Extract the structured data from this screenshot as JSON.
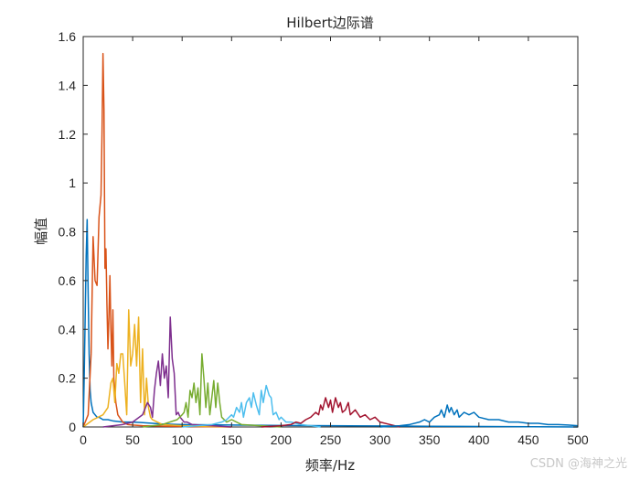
{
  "chart_data": {
    "type": "line",
    "title": "Hilbert边际谱",
    "xlabel": "频率/Hz",
    "ylabel": "幅值",
    "xlim": [
      0,
      500
    ],
    "ylim": [
      0,
      1.6
    ],
    "xticks": [
      "0",
      "50",
      "100",
      "150",
      "200",
      "250",
      "300",
      "350",
      "400",
      "450",
      "500"
    ],
    "yticks": [
      "0",
      "0.2",
      "0.4",
      "0.6",
      "0.8",
      "1",
      "1.2",
      "1.4",
      "1.6"
    ],
    "grid": false,
    "legend": "none",
    "series": [
      {
        "color": "#0072BD",
        "x": [
          0,
          1,
          2,
          3,
          4,
          5,
          6,
          7,
          8,
          9,
          10,
          12,
          14,
          16,
          18,
          20,
          25,
          30,
          40,
          50,
          60,
          70,
          80,
          100,
          150,
          200,
          250,
          300,
          350,
          500
        ],
        "y": [
          0.0,
          0.2,
          0.45,
          0.7,
          0.85,
          0.55,
          0.3,
          0.15,
          0.1,
          0.08,
          0.06,
          0.05,
          0.04,
          0.04,
          0.035,
          0.03,
          0.03,
          0.025,
          0.02,
          0.02,
          0.018,
          0.015,
          0.012,
          0.01,
          0.008,
          0.006,
          0.005,
          0.004,
          0.003,
          0.0
        ]
      },
      {
        "color": "#D95319",
        "x": [
          0,
          5,
          8,
          10,
          12,
          14,
          16,
          18,
          19,
          20,
          21,
          22,
          23,
          24,
          25,
          26,
          27,
          28,
          29,
          30,
          31,
          32,
          33,
          35,
          40,
          45,
          50,
          60,
          100,
          150
        ],
        "y": [
          0.0,
          0.05,
          0.3,
          0.78,
          0.6,
          0.58,
          0.86,
          0.95,
          1.2,
          1.53,
          1.3,
          0.65,
          0.73,
          0.5,
          0.32,
          0.45,
          0.62,
          0.4,
          0.25,
          0.48,
          0.2,
          0.15,
          0.1,
          0.05,
          0.02,
          0.01,
          0.008,
          0.005,
          0.002,
          0.0
        ]
      },
      {
        "color": "#EDB120",
        "x": [
          0,
          10,
          20,
          25,
          28,
          30,
          32,
          34,
          36,
          38,
          40,
          42,
          44,
          46,
          48,
          50,
          52,
          54,
          56,
          58,
          60,
          62,
          64,
          66,
          68,
          70,
          75,
          80,
          100,
          150
        ],
        "y": [
          0.0,
          0.03,
          0.05,
          0.08,
          0.18,
          0.2,
          0.1,
          0.26,
          0.22,
          0.3,
          0.3,
          0.18,
          0.05,
          0.48,
          0.25,
          0.3,
          0.42,
          0.25,
          0.45,
          0.1,
          0.32,
          0.05,
          0.2,
          0.08,
          0.04,
          0.03,
          0.02,
          0.01,
          0.005,
          0.0
        ]
      },
      {
        "color": "#7E2F8E",
        "x": [
          20,
          40,
          50,
          60,
          65,
          68,
          70,
          72,
          74,
          76,
          78,
          80,
          82,
          84,
          86,
          88,
          90,
          92,
          94,
          96,
          98,
          100,
          102,
          105,
          110,
          130,
          150
        ],
        "y": [
          0.0,
          0.01,
          0.02,
          0.05,
          0.1,
          0.08,
          0.04,
          0.15,
          0.22,
          0.27,
          0.17,
          0.3,
          0.2,
          0.25,
          0.12,
          0.45,
          0.28,
          0.22,
          0.05,
          0.06,
          0.04,
          0.03,
          0.02,
          0.02,
          0.01,
          0.005,
          0.0
        ]
      },
      {
        "color": "#77AC30",
        "x": [
          60,
          80,
          95,
          100,
          102,
          104,
          106,
          108,
          110,
          112,
          114,
          116,
          118,
          120,
          122,
          124,
          126,
          128,
          130,
          132,
          134,
          136,
          138,
          140,
          145,
          150,
          160,
          200
        ],
        "y": [
          0.0,
          0.01,
          0.03,
          0.05,
          0.06,
          0.1,
          0.04,
          0.15,
          0.12,
          0.18,
          0.1,
          0.16,
          0.05,
          0.3,
          0.2,
          0.08,
          0.18,
          0.05,
          0.12,
          0.19,
          0.08,
          0.18,
          0.1,
          0.04,
          0.02,
          0.03,
          0.01,
          0.0
        ]
      },
      {
        "color": "#4DBEEE",
        "x": [
          100,
          130,
          140,
          145,
          150,
          152,
          155,
          158,
          160,
          162,
          165,
          168,
          170,
          172,
          175,
          178,
          180,
          182,
          185,
          188,
          190,
          192,
          195,
          198,
          200,
          205,
          210,
          220,
          240
        ],
        "y": [
          0.0,
          0.01,
          0.02,
          0.03,
          0.05,
          0.04,
          0.08,
          0.06,
          0.1,
          0.04,
          0.1,
          0.12,
          0.08,
          0.14,
          0.09,
          0.05,
          0.15,
          0.1,
          0.17,
          0.13,
          0.12,
          0.05,
          0.06,
          0.03,
          0.04,
          0.02,
          0.02,
          0.01,
          0.0
        ]
      },
      {
        "color": "#A2142F",
        "x": [
          180,
          200,
          210,
          215,
          220,
          225,
          230,
          235,
          238,
          240,
          242,
          245,
          248,
          250,
          252,
          255,
          258,
          260,
          262,
          265,
          268,
          270,
          275,
          280,
          285,
          290,
          295,
          300,
          310,
          320
        ],
        "y": [
          0.0,
          0.005,
          0.01,
          0.02,
          0.015,
          0.03,
          0.04,
          0.06,
          0.05,
          0.09,
          0.07,
          0.12,
          0.08,
          0.11,
          0.06,
          0.12,
          0.08,
          0.1,
          0.06,
          0.07,
          0.1,
          0.05,
          0.07,
          0.04,
          0.05,
          0.03,
          0.04,
          0.02,
          0.01,
          0.0
        ]
      },
      {
        "color": "#0072BD",
        "x": [
          300,
          320,
          330,
          340,
          345,
          350,
          355,
          360,
          362,
          365,
          368,
          370,
          372,
          375,
          378,
          380,
          385,
          390,
          395,
          400,
          410,
          420,
          430,
          440,
          450,
          460,
          470,
          480,
          490,
          500
        ],
        "y": [
          0.0,
          0.005,
          0.01,
          0.02,
          0.03,
          0.02,
          0.04,
          0.05,
          0.07,
          0.04,
          0.09,
          0.06,
          0.08,
          0.05,
          0.07,
          0.04,
          0.06,
          0.05,
          0.06,
          0.04,
          0.03,
          0.03,
          0.02,
          0.02,
          0.015,
          0.015,
          0.01,
          0.01,
          0.008,
          0.005
        ]
      }
    ]
  },
  "watermark": "CSDN @海神之光"
}
